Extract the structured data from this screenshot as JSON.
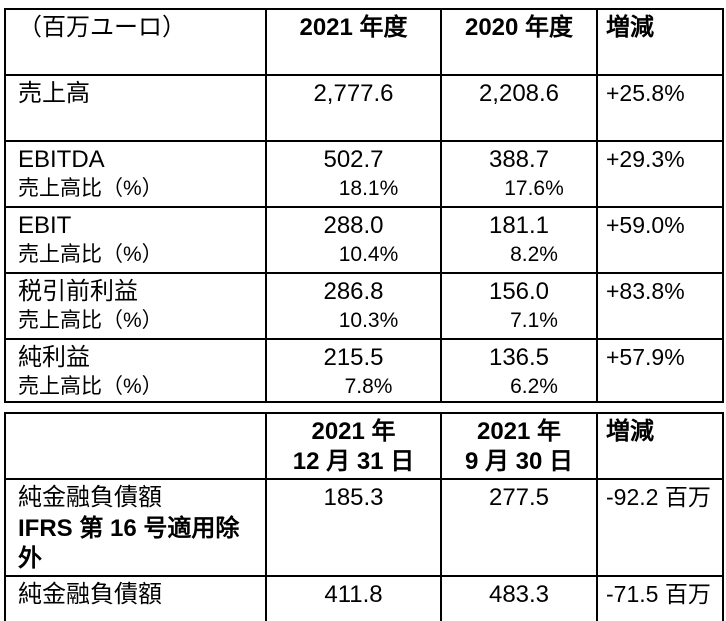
{
  "colors": {
    "background": "#ffffff",
    "text": "#000000",
    "border": "#000000"
  },
  "table1": {
    "header": {
      "unit_label": "（百万ユーロ）",
      "fy2021": "2021 年度",
      "fy2020": "2020 年度",
      "change": "増減"
    },
    "rows": [
      {
        "label": "売上高",
        "sub": "",
        "v2021": "2,777.6",
        "p2021": "",
        "v2020": "2,208.6",
        "p2020": "",
        "change": "+25.8%"
      },
      {
        "label": "EBITDA",
        "sub": "売上高比（%）",
        "v2021": "502.7",
        "p2021": "18.1%",
        "v2020": "388.7",
        "p2020": "17.6%",
        "change": "+29.3%"
      },
      {
        "label": "EBIT",
        "sub": "売上高比（%）",
        "v2021": "288.0",
        "p2021": "10.4%",
        "v2020": "181.1",
        "p2020": "8.2%",
        "change": "+59.0%"
      },
      {
        "label": "税引前利益",
        "sub": "売上高比（%）",
        "v2021": "286.8",
        "p2021": "10.3%",
        "v2020": "156.0",
        "p2020": "7.1%",
        "change": "+83.8%"
      },
      {
        "label": "純利益",
        "sub": "売上高比（%）",
        "v2021": "215.5",
        "p2021": "7.8%",
        "v2020": "136.5",
        "p2020": "6.2%",
        "change": "+57.9%"
      }
    ]
  },
  "table2": {
    "header": {
      "unit_label": "",
      "date1_line1": "2021 年",
      "date1_line2": "12 月 31 日",
      "date2_line1": "2021 年",
      "date2_line2": "9 月 30 日",
      "change": "増減"
    },
    "rows": [
      {
        "label": "純金融負債額",
        "label2": "IFRS 第 16 号適用除外",
        "v1": "185.3",
        "v2": "277.5",
        "change": "-92.2 百万"
      },
      {
        "label": "純金融負債額",
        "label2": "",
        "v1": "411.8",
        "v2": "483.3",
        "change": "-71.5 百万"
      }
    ]
  }
}
